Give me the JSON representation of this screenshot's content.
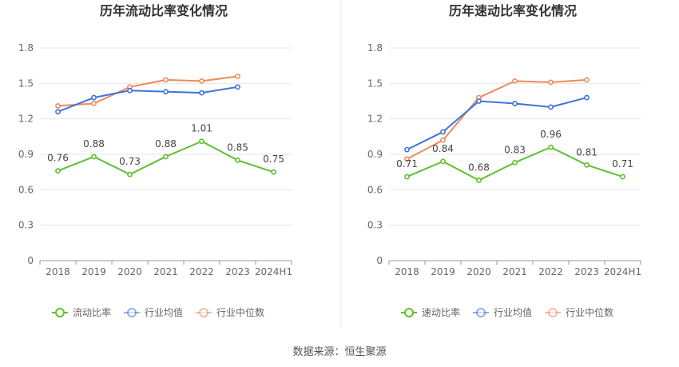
{
  "source": "数据来源：恒生聚源",
  "colors": {
    "main": "#5cc12f",
    "avg": "#3d74d9",
    "median": "#ef8a5c",
    "grid": "#e6e6e6",
    "axis": "#999999"
  },
  "chart_data": [
    {
      "type": "line",
      "title": "历年流动比率变化情况",
      "categories": [
        "2018",
        "2019",
        "2020",
        "2021",
        "2022",
        "2023",
        "2024H1"
      ],
      "yticks": [
        "0",
        "0.3",
        "0.6",
        "0.9",
        "1.2",
        "1.5",
        "1.8"
      ],
      "ylim": [
        0,
        1.8
      ],
      "series": [
        {
          "name": "流动比率",
          "role": "main",
          "values": [
            0.76,
            0.88,
            0.73,
            0.88,
            1.01,
            0.85,
            0.75
          ],
          "labels": [
            "0.76",
            "0.88",
            "0.73",
            "0.88",
            "1.01",
            "0.85",
            "0.75"
          ]
        },
        {
          "name": "行业均值",
          "role": "avg",
          "values": [
            1.26,
            1.38,
            1.44,
            1.43,
            1.42,
            1.47,
            null
          ]
        },
        {
          "name": "行业中位数",
          "role": "median",
          "values": [
            1.31,
            1.33,
            1.47,
            1.53,
            1.52,
            1.56,
            null
          ]
        }
      ]
    },
    {
      "type": "line",
      "title": "历年速动比率变化情况",
      "categories": [
        "2018",
        "2019",
        "2020",
        "2021",
        "2022",
        "2023",
        "2024H1"
      ],
      "yticks": [
        "0",
        "0.3",
        "0.6",
        "0.9",
        "1.2",
        "1.5",
        "1.8"
      ],
      "ylim": [
        0,
        1.8
      ],
      "series": [
        {
          "name": "速动比率",
          "role": "main",
          "values": [
            0.71,
            0.84,
            0.68,
            0.83,
            0.96,
            0.81,
            0.71
          ],
          "labels": [
            "0.71",
            "0.84",
            "0.68",
            "0.83",
            "0.96",
            "0.81",
            "0.71"
          ]
        },
        {
          "name": "行业均值",
          "role": "avg",
          "values": [
            0.94,
            1.09,
            1.35,
            1.33,
            1.3,
            1.38,
            null
          ]
        },
        {
          "name": "行业中位数",
          "role": "median",
          "values": [
            0.86,
            1.02,
            1.38,
            1.52,
            1.51,
            1.53,
            null
          ]
        }
      ]
    }
  ]
}
